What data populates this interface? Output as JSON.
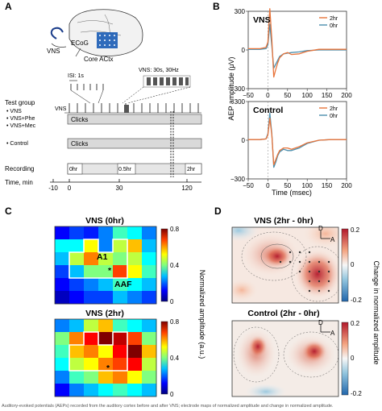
{
  "panels": {
    "A": {
      "label": "A",
      "brain": {
        "vns": "VNS",
        "ecog": "ECoG",
        "core": "Core ACtx"
      },
      "isi": "ISI: 1s",
      "vns_train": "VNS: 30s, 30Hz",
      "test_group": "Test group",
      "groups": [
        "VNS",
        "VNS+Phe",
        "VNS+Mec"
      ],
      "control_group": "Control",
      "vns_row": "VNS",
      "clicks": "Clicks",
      "recording": "Recording",
      "rec_times": [
        "0hr",
        "0.5hr",
        "2hr"
      ],
      "time_label": "Time, min",
      "time_ticks": [
        "-10",
        "0",
        "30",
        "120"
      ]
    },
    "B": {
      "label": "B",
      "ylabel": "AEP amplitude (μV)",
      "xlabel": "Time (msec)",
      "legend": [
        "2hr",
        "0hr"
      ],
      "colors": {
        "2hr": "#e8743b",
        "0hr": "#4b8fae"
      },
      "subplots": [
        "VNS",
        "Control"
      ]
    },
    "C": {
      "label": "C",
      "titles": [
        "VNS (0hr)",
        "VNS (2hr)"
      ],
      "regions": {
        "a1": "A1",
        "aaf": "AAF",
        "star": "*"
      },
      "cbar_label": "Normalized amplitude (a.u.)",
      "cbar_ticks": [
        "0.8",
        "0.4",
        "0"
      ]
    },
    "D": {
      "label": "D",
      "titles": [
        "VNS (2hr - 0hr)",
        "Control (2hr - 0hr)"
      ],
      "cbar_label": "Change in normalized amplitude",
      "cbar_ticks": [
        "0.2",
        "0",
        "-0.2"
      ],
      "orient": {
        "d": "D",
        "a": "A"
      }
    }
  },
  "chart_data": [
    {
      "type": "line",
      "title": "VNS",
      "xlabel": "Time (msec)",
      "ylabel": "AEP amplitude (μV)",
      "xlim": [
        -50,
        200
      ],
      "ylim": [
        -300,
        300
      ],
      "xticks": [
        "−50",
        "0",
        "50",
        "100",
        "150",
        "200"
      ],
      "yticks": [
        "−300",
        "0",
        "300"
      ],
      "x": [
        -50,
        -20,
        -5,
        0,
        5,
        10,
        15,
        20,
        25,
        30,
        40,
        50,
        60,
        80,
        100,
        130,
        160,
        200
      ],
      "series": [
        {
          "name": "2hr",
          "values": [
            10,
            10,
            20,
            60,
            320,
            80,
            -210,
            -150,
            -100,
            -60,
            -30,
            -20,
            -35,
            -30,
            -10,
            5,
            5,
            5
          ]
        },
        {
          "name": "0hr",
          "values": [
            5,
            5,
            10,
            40,
            200,
            30,
            -140,
            -110,
            -80,
            -50,
            -30,
            -25,
            -20,
            -15,
            -5,
            0,
            0,
            0
          ]
        }
      ]
    },
    {
      "type": "line",
      "title": "Control",
      "xlabel": "Time (msec)",
      "ylabel": "AEP amplitude (μV)",
      "xlim": [
        -50,
        200
      ],
      "ylim": [
        -300,
        300
      ],
      "xticks": [
        "−50",
        "0",
        "50",
        "100",
        "150",
        "200"
      ],
      "yticks": [
        "−300",
        "0",
        "300"
      ],
      "x": [
        -50,
        -20,
        -5,
        0,
        5,
        10,
        15,
        20,
        25,
        30,
        40,
        50,
        60,
        80,
        100,
        130,
        160,
        200
      ],
      "series": [
        {
          "name": "2hr",
          "values": [
            5,
            5,
            10,
            40,
            170,
            40,
            -190,
            -150,
            -110,
            -80,
            -60,
            -60,
            -70,
            -50,
            -20,
            0,
            5,
            5
          ]
        },
        {
          "name": "0hr",
          "values": [
            5,
            5,
            10,
            50,
            210,
            50,
            -210,
            -170,
            -120,
            -90,
            -70,
            -80,
            -80,
            -60,
            -25,
            0,
            5,
            5
          ]
        }
      ]
    },
    {
      "type": "heatmap",
      "title": "VNS (0hr)",
      "zlim": [
        0,
        0.8
      ],
      "values": [
        [
          0.1,
          0.15,
          0.12,
          0.2,
          0.35,
          0.3,
          0.2
        ],
        [
          0.3,
          0.3,
          0.5,
          0.2,
          0.45,
          0.55,
          0.25
        ],
        [
          0.25,
          0.45,
          0.6,
          0.45,
          0.4,
          0.45,
          0.3
        ],
        [
          0.15,
          0.25,
          0.4,
          0.4,
          0.65,
          0.5,
          0.35
        ],
        [
          0.1,
          0.15,
          0.2,
          0.25,
          0.35,
          0.3,
          0.25
        ],
        [
          0.05,
          0.1,
          0.15,
          0.15,
          0.25,
          0.2,
          0.15
        ]
      ]
    },
    {
      "type": "heatmap",
      "title": "VNS (2hr)",
      "zlim": [
        0,
        0.8
      ],
      "values": [
        [
          0.2,
          0.25,
          0.45,
          0.55,
          0.35,
          0.3,
          0.25
        ],
        [
          0.4,
          0.6,
          0.7,
          0.8,
          0.75,
          0.65,
          0.4
        ],
        [
          0.35,
          0.55,
          0.6,
          0.5,
          0.7,
          0.8,
          0.55
        ],
        [
          0.3,
          0.45,
          0.5,
          0.6,
          0.65,
          0.7,
          0.45
        ],
        [
          0.2,
          0.35,
          0.4,
          0.55,
          0.6,
          0.5,
          0.4
        ],
        [
          0.1,
          0.2,
          0.25,
          0.3,
          0.35,
          0.3,
          0.25
        ]
      ]
    }
  ],
  "caption": "Auditory-evoked potentials (AEPs) recorded from the auditory cortex before and after VNS; electrode maps of normalized amplitude and change in normalized amplitude."
}
